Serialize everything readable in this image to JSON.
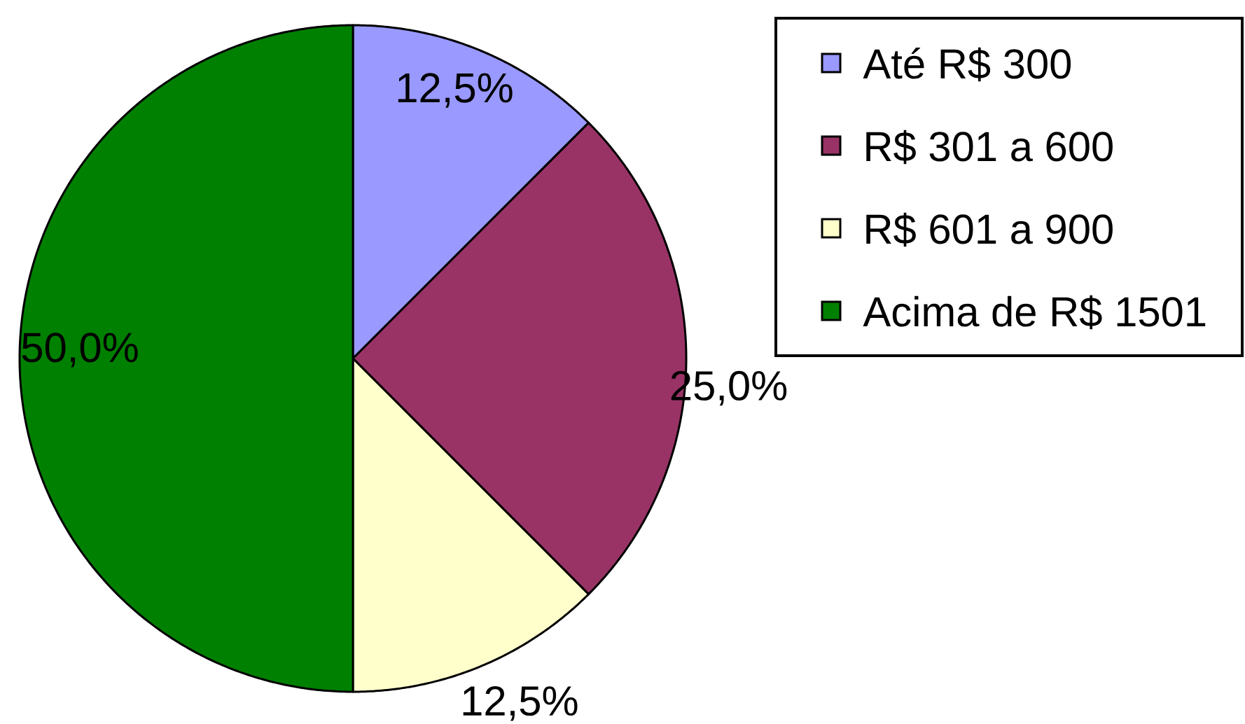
{
  "chart_data": {
    "type": "pie",
    "categories": [
      "Até R$ 300",
      "R$ 301 a 600",
      "R$ 601 a 900",
      "Acima de R$ 1501"
    ],
    "values": [
      12.5,
      25,
      12.5,
      50
    ],
    "colors": [
      "#9999ff",
      "#993366",
      "#ffffcc",
      "#008000"
    ],
    "value_labels": [
      "12,5%",
      "25,0%",
      "12,5%",
      "50,0%"
    ],
    "legend": "top right"
  }
}
